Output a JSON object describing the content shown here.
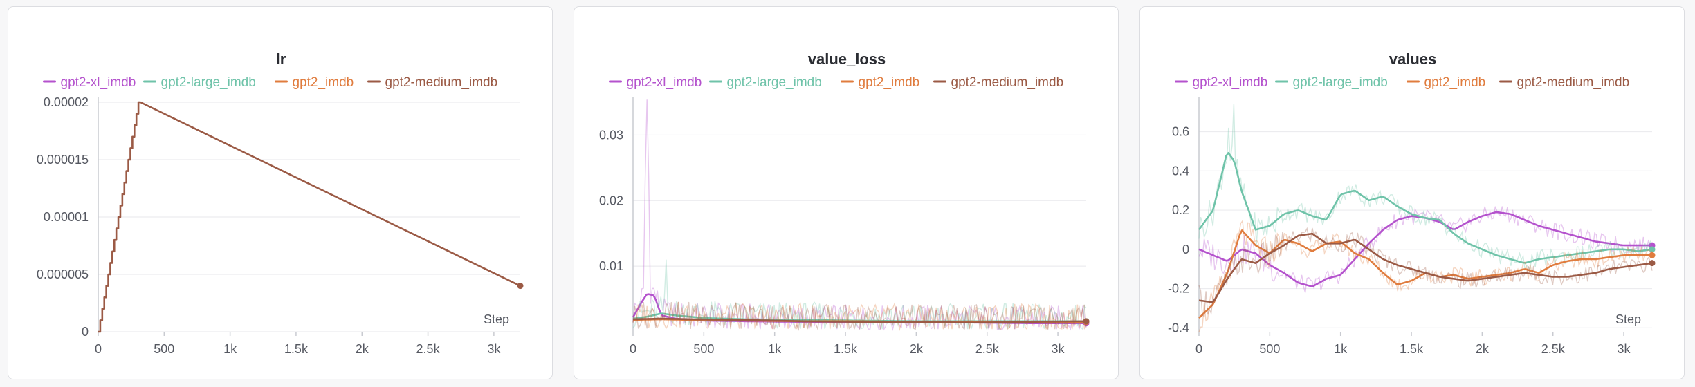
{
  "legend": [
    {
      "name": "gpt2-xl_imdb",
      "color": "#b452cd"
    },
    {
      "name": "gpt2-large_imdb",
      "color": "#6fc3a9"
    },
    {
      "name": "gpt2_imdb",
      "color": "#e07c3e"
    },
    {
      "name": "gpt2-medium_imdb",
      "color": "#9b5a45"
    }
  ],
  "chart_data": [
    {
      "type": "line",
      "title": "lr",
      "xlabel": "Step",
      "ylabel": "",
      "xlim": [
        0,
        3200
      ],
      "ylim": [
        0,
        2e-05
      ],
      "xticks": [
        "0",
        "500",
        "1k",
        "1.5k",
        "2k",
        "2.5k",
        "3k"
      ],
      "xtick_values": [
        0,
        500,
        1000,
        1500,
        2000,
        2500,
        3000
      ],
      "yticks": [
        "0",
        "0.000005",
        "0.00001",
        "0.000015",
        "0.00002"
      ],
      "ytick_values": [
        0,
        5e-06,
        1e-05,
        1.5e-05,
        2e-05
      ],
      "series": [
        {
          "name": "gpt2-medium_imdb",
          "x": [
            0,
            320,
            3200
          ],
          "y": [
            0,
            2e-05,
            4e-06
          ],
          "warmup": "stepped"
        }
      ]
    },
    {
      "type": "line",
      "title": "value_loss",
      "xlabel": "",
      "ylabel": "",
      "xlim": [
        0,
        3200
      ],
      "ylim": [
        0,
        0.035
      ],
      "xticks": [
        "0",
        "500",
        "1k",
        "1.5k",
        "2k",
        "2.5k",
        "3k"
      ],
      "xtick_values": [
        0,
        500,
        1000,
        1500,
        2000,
        2500,
        3000
      ],
      "yticks": [
        "0.01",
        "0.02",
        "0.03"
      ],
      "ytick_values": [
        0.01,
        0.02,
        0.03
      ],
      "series": [
        {
          "name": "gpt2-xl_imdb",
          "x": [
            0,
            60,
            100,
            150,
            200,
            300,
            500,
            800,
            1200,
            1600,
            2000,
            2400,
            2800,
            3200
          ],
          "y": [
            0.0022,
            0.0045,
            0.0058,
            0.0055,
            0.0025,
            0.002,
            0.0017,
            0.0016,
            0.0015,
            0.0014,
            0.0014,
            0.0014,
            0.0013,
            0.0013
          ]
        },
        {
          "name": "gpt2-large_imdb",
          "x": [
            0,
            100,
            200,
            300,
            500,
            800,
            1200,
            1600,
            2000,
            2400,
            2800,
            3200
          ],
          "y": [
            0.002,
            0.0023,
            0.0028,
            0.0025,
            0.0021,
            0.0019,
            0.0018,
            0.0017,
            0.0016,
            0.0016,
            0.0016,
            0.0016
          ]
        },
        {
          "name": "gpt2_imdb",
          "x": [
            0,
            200,
            400,
            800,
            1200,
            1600,
            2000,
            2400,
            2800,
            3200
          ],
          "y": [
            0.0018,
            0.0019,
            0.0018,
            0.0017,
            0.0016,
            0.0016,
            0.0015,
            0.0015,
            0.0015,
            0.0015
          ]
        },
        {
          "name": "gpt2-medium_imdb",
          "x": [
            0,
            200,
            400,
            800,
            1200,
            1600,
            2000,
            2400,
            2800,
            3200
          ],
          "y": [
            0.0019,
            0.002,
            0.0019,
            0.0018,
            0.0016,
            0.0015,
            0.0015,
            0.0014,
            0.0015,
            0.0016
          ]
        }
      ]
    },
    {
      "type": "line",
      "title": "values",
      "xlabel": "Step",
      "ylabel": "",
      "xlim": [
        0,
        3200
      ],
      "ylim": [
        -0.42,
        0.75
      ],
      "xticks": [
        "0",
        "500",
        "1k",
        "1.5k",
        "2k",
        "2.5k",
        "3k"
      ],
      "xtick_values": [
        0,
        500,
        1000,
        1500,
        2000,
        2500,
        3000
      ],
      "yticks": [
        "-0.4",
        "-0.2",
        "0",
        "0.2",
        "0.4",
        "0.6"
      ],
      "ytick_values": [
        -0.4,
        -0.2,
        0,
        0.2,
        0.4,
        0.6
      ],
      "series": [
        {
          "name": "gpt2-xl_imdb",
          "x": [
            0,
            100,
            200,
            300,
            400,
            500,
            600,
            700,
            800,
            900,
            1000,
            1100,
            1200,
            1300,
            1400,
            1500,
            1600,
            1700,
            1800,
            1900,
            2000,
            2100,
            2200,
            2300,
            2400,
            2500,
            2600,
            2700,
            2800,
            2900,
            3000,
            3100,
            3200
          ],
          "y": [
            0.0,
            -0.03,
            -0.06,
            0.0,
            -0.02,
            -0.08,
            -0.12,
            -0.17,
            -0.19,
            -0.15,
            -0.13,
            -0.05,
            0.03,
            0.1,
            0.15,
            0.17,
            0.16,
            0.14,
            0.1,
            0.14,
            0.17,
            0.19,
            0.18,
            0.15,
            0.12,
            0.1,
            0.08,
            0.06,
            0.04,
            0.03,
            0.02,
            0.02,
            0.02
          ]
        },
        {
          "name": "gpt2-large_imdb",
          "x": [
            0,
            100,
            150,
            200,
            250,
            300,
            350,
            400,
            500,
            600,
            700,
            800,
            900,
            1000,
            1100,
            1200,
            1300,
            1400,
            1500,
            1600,
            1700,
            1800,
            1900,
            2000,
            2100,
            2200,
            2300,
            2400,
            2500,
            2600,
            2700,
            2800,
            2900,
            3000,
            3100,
            3200
          ],
          "y": [
            0.1,
            0.2,
            0.35,
            0.5,
            0.45,
            0.3,
            0.2,
            0.1,
            0.12,
            0.18,
            0.2,
            0.17,
            0.15,
            0.28,
            0.3,
            0.25,
            0.27,
            0.22,
            0.18,
            0.16,
            0.15,
            0.08,
            0.03,
            0.0,
            -0.03,
            -0.05,
            -0.07,
            -0.05,
            -0.04,
            -0.03,
            -0.02,
            -0.01,
            0.0,
            0.0,
            -0.01,
            0.0
          ]
        },
        {
          "name": "gpt2_imdb",
          "x": [
            0,
            100,
            200,
            300,
            400,
            500,
            600,
            700,
            800,
            900,
            1000,
            1100,
            1200,
            1300,
            1400,
            1500,
            1600,
            1700,
            1800,
            1900,
            2000,
            2100,
            2200,
            2300,
            2400,
            2500,
            2600,
            2700,
            2800,
            2900,
            3000,
            3100,
            3200
          ],
          "y": [
            -0.35,
            -0.28,
            -0.12,
            0.1,
            0.02,
            -0.02,
            0.05,
            0.03,
            -0.01,
            0.03,
            0.04,
            -0.02,
            -0.05,
            -0.12,
            -0.18,
            -0.16,
            -0.12,
            -0.14,
            -0.13,
            -0.15,
            -0.14,
            -0.13,
            -0.12,
            -0.1,
            -0.12,
            -0.08,
            -0.06,
            -0.05,
            -0.05,
            -0.04,
            -0.03,
            -0.03,
            -0.03
          ]
        },
        {
          "name": "gpt2-medium_imdb",
          "x": [
            0,
            100,
            200,
            300,
            400,
            500,
            600,
            700,
            800,
            900,
            1000,
            1100,
            1200,
            1300,
            1400,
            1500,
            1600,
            1700,
            1800,
            1900,
            2000,
            2100,
            2200,
            2300,
            2400,
            2500,
            2600,
            2700,
            2800,
            2900,
            3000,
            3100,
            3200
          ],
          "y": [
            -0.26,
            -0.27,
            -0.15,
            -0.05,
            -0.07,
            -0.02,
            0.02,
            0.07,
            0.08,
            0.03,
            0.03,
            0.05,
            0.0,
            -0.05,
            -0.08,
            -0.1,
            -0.12,
            -0.14,
            -0.15,
            -0.16,
            -0.15,
            -0.14,
            -0.13,
            -0.12,
            -0.13,
            -0.14,
            -0.14,
            -0.13,
            -0.12,
            -0.1,
            -0.09,
            -0.08,
            -0.07
          ]
        }
      ]
    }
  ]
}
